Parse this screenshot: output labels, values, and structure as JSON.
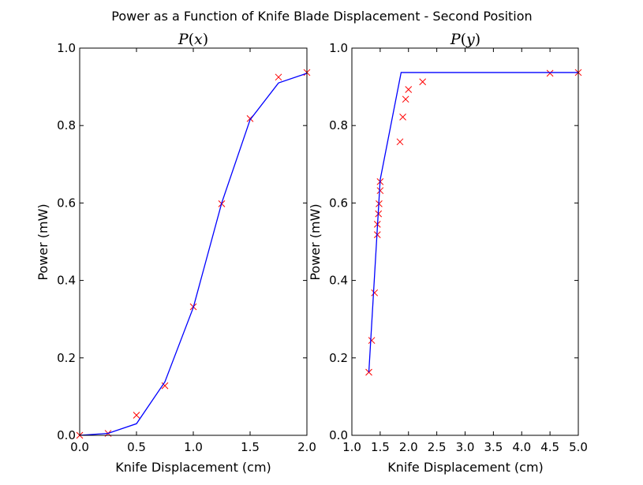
{
  "figure": {
    "suptitle": "Power as a Function of Knife Blade Displacement - Second Position"
  },
  "chart_data": [
    {
      "type": "line",
      "title": "P(x)",
      "title_parts": {
        "name": "P",
        "arg": "x"
      },
      "xlabel": "Knife Displacement (cm)",
      "ylabel": "Power (mW)",
      "xlim": [
        0.0,
        2.0
      ],
      "ylim": [
        0.0,
        1.0
      ],
      "xticks": [
        "0.0",
        "0.5",
        "1.0",
        "1.5",
        "2.0"
      ],
      "yticks": [
        "0.0",
        "0.2",
        "0.4",
        "0.6",
        "0.8",
        "1.0"
      ],
      "grid": false,
      "series": [
        {
          "kind": "markers",
          "marker": "x",
          "color": "#ff0000",
          "x": [
            0.0,
            0.25,
            0.5,
            0.75,
            1.0,
            1.25,
            1.5,
            1.75,
            2.0
          ],
          "y": [
            0.0,
            0.005,
            0.052,
            0.128,
            0.332,
            0.598,
            0.818,
            0.925,
            0.937
          ]
        },
        {
          "kind": "line",
          "color": "#0000ff",
          "x": [
            0.0,
            0.25,
            0.5,
            0.75,
            1.0,
            1.25,
            1.5,
            1.75,
            2.0
          ],
          "y": [
            0.0,
            0.005,
            0.03,
            0.138,
            0.33,
            0.6,
            0.815,
            0.91,
            0.935
          ]
        }
      ]
    },
    {
      "type": "line",
      "title": "P(y)",
      "title_parts": {
        "name": "P",
        "arg": "y"
      },
      "xlabel": "Knife Displacement (cm)",
      "ylabel": "Power (mW)",
      "xlim": [
        1.0,
        5.0
      ],
      "ylim": [
        0.0,
        1.0
      ],
      "xticks": [
        "1.0",
        "1.5",
        "2.0",
        "2.5",
        "3.0",
        "3.5",
        "4.0",
        "4.5",
        "5.0"
      ],
      "yticks": [
        "0.0",
        "0.2",
        "0.4",
        "0.6",
        "0.8",
        "1.0"
      ],
      "grid": false,
      "series": [
        {
          "kind": "markers",
          "marker": "x",
          "color": "#ff0000",
          "x": [
            1.3,
            1.35,
            1.4,
            1.45,
            1.45,
            1.47,
            1.48,
            1.5,
            1.5,
            1.85,
            1.9,
            1.95,
            2.0,
            2.25,
            4.5,
            5.0
          ],
          "y": [
            0.163,
            0.245,
            0.368,
            0.518,
            0.545,
            0.572,
            0.598,
            0.632,
            0.655,
            0.758,
            0.822,
            0.868,
            0.893,
            0.913,
            0.935,
            0.937
          ]
        },
        {
          "kind": "line",
          "color": "#0000ff",
          "x": [
            1.3,
            1.5,
            1.87,
            5.0
          ],
          "y": [
            0.163,
            0.66,
            0.937,
            0.937
          ]
        }
      ]
    }
  ]
}
